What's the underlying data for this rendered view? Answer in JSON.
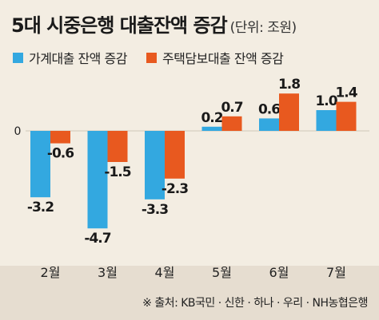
{
  "title": {
    "main": "5대 시중은행 대출잔액 증감",
    "unit": "(단위: 조원)"
  },
  "source": "※ 출처: KB국민 · 신한 · 하나 · 우리 · NH농협은행",
  "colors": {
    "background": "#f3ede2",
    "household": "#33a8e0",
    "mortgage": "#e8591f",
    "footer_band": "#e6ddd0"
  },
  "chart_data": {
    "type": "bar",
    "categories": [
      "2월",
      "3월",
      "4월",
      "5월",
      "6월",
      "7월"
    ],
    "series": [
      {
        "name": "가계대출 잔액 증감",
        "values": [
          -3.2,
          -4.7,
          -3.3,
          0.2,
          0.6,
          1.0
        ],
        "labels": [
          "-3.2",
          "-4.7",
          "-3.3",
          "0.2",
          "0.6",
          "1.0"
        ]
      },
      {
        "name": "주택담보대출 잔액 증감",
        "values": [
          -0.6,
          -1.5,
          -2.3,
          0.7,
          1.8,
          1.4
        ],
        "labels": [
          "-0.6",
          "-1.5",
          "-2.3",
          "0.7",
          "1.8",
          "1.4"
        ]
      }
    ],
    "zero_label": "0",
    "ylim": [
      -5.0,
      2.0
    ],
    "grid": false,
    "legend": "top"
  }
}
